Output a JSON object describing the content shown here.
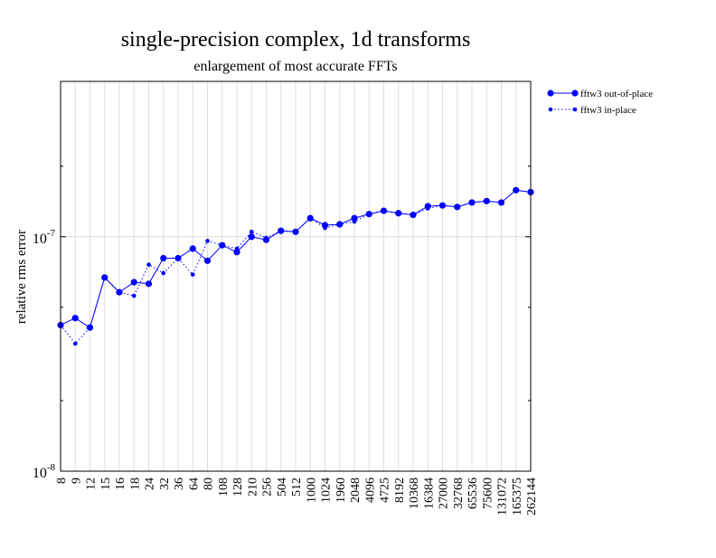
{
  "chart_data": {
    "type": "line",
    "title": "single-precision complex, 1d transforms",
    "subtitle": "enlargement of most accurate FFTs",
    "xlabel": "",
    "ylabel": "relative rms error",
    "yscale": "log",
    "ylim": [
      1e-08,
      4.6e-07
    ],
    "yticks": [
      {
        "value": 1e-08,
        "base": "10",
        "exp": "-8"
      },
      {
        "value": 1e-07,
        "base": "10",
        "exp": "-7"
      }
    ],
    "categories": [
      "8",
      "9",
      "12",
      "15",
      "16",
      "18",
      "24",
      "32",
      "36",
      "64",
      "80",
      "108",
      "128",
      "210",
      "256",
      "504",
      "512",
      "1000",
      "1024",
      "1960",
      "2048",
      "4096",
      "4725",
      "8192",
      "10368",
      "16384",
      "27000",
      "32768",
      "65536",
      "75600",
      "131072",
      "165375",
      "262144"
    ],
    "series": [
      {
        "name": "fftw3 out-of-place",
        "style": "solid",
        "color": "#0000ff",
        "values": [
          4.2e-08,
          4.5e-08,
          4.1e-08,
          6.7e-08,
          5.8e-08,
          6.4e-08,
          6.3e-08,
          8.1e-08,
          8.1e-08,
          8.9e-08,
          7.9e-08,
          9.2e-08,
          8.6e-08,
          1e-07,
          9.7e-08,
          1.06e-07,
          1.05e-07,
          1.2e-07,
          1.12e-07,
          1.13e-07,
          1.2e-07,
          1.25e-07,
          1.29e-07,
          1.26e-07,
          1.24e-07,
          1.35e-07,
          1.36e-07,
          1.34e-07,
          1.4e-07,
          1.42e-07,
          1.4e-07,
          1.58e-07,
          1.55e-07
        ]
      },
      {
        "name": "fftw3 in-place",
        "style": "dotted",
        "color": "#0000ff",
        "values": [
          4.2e-08,
          3.5e-08,
          4.1e-08,
          6.7e-08,
          5.8e-08,
          5.6e-08,
          7.6e-08,
          7e-08,
          8.1e-08,
          6.9e-08,
          9.6e-08,
          9.2e-08,
          8.9e-08,
          1.05e-07,
          9.9e-08,
          1.06e-07,
          1.05e-07,
          1.2e-07,
          1.09e-07,
          1.13e-07,
          1.16e-07,
          1.25e-07,
          1.29e-07,
          1.26e-07,
          1.24e-07,
          1.32e-07,
          1.36e-07,
          1.34e-07,
          1.4e-07,
          1.42e-07,
          1.4e-07,
          1.58e-07,
          1.55e-07
        ]
      }
    ],
    "legend_position": "top-right, outside plot",
    "grid": "vertical lines at each category"
  },
  "colors": {
    "series": "#0000ff",
    "grid": "#dddddd",
    "axis": "#000000"
  }
}
